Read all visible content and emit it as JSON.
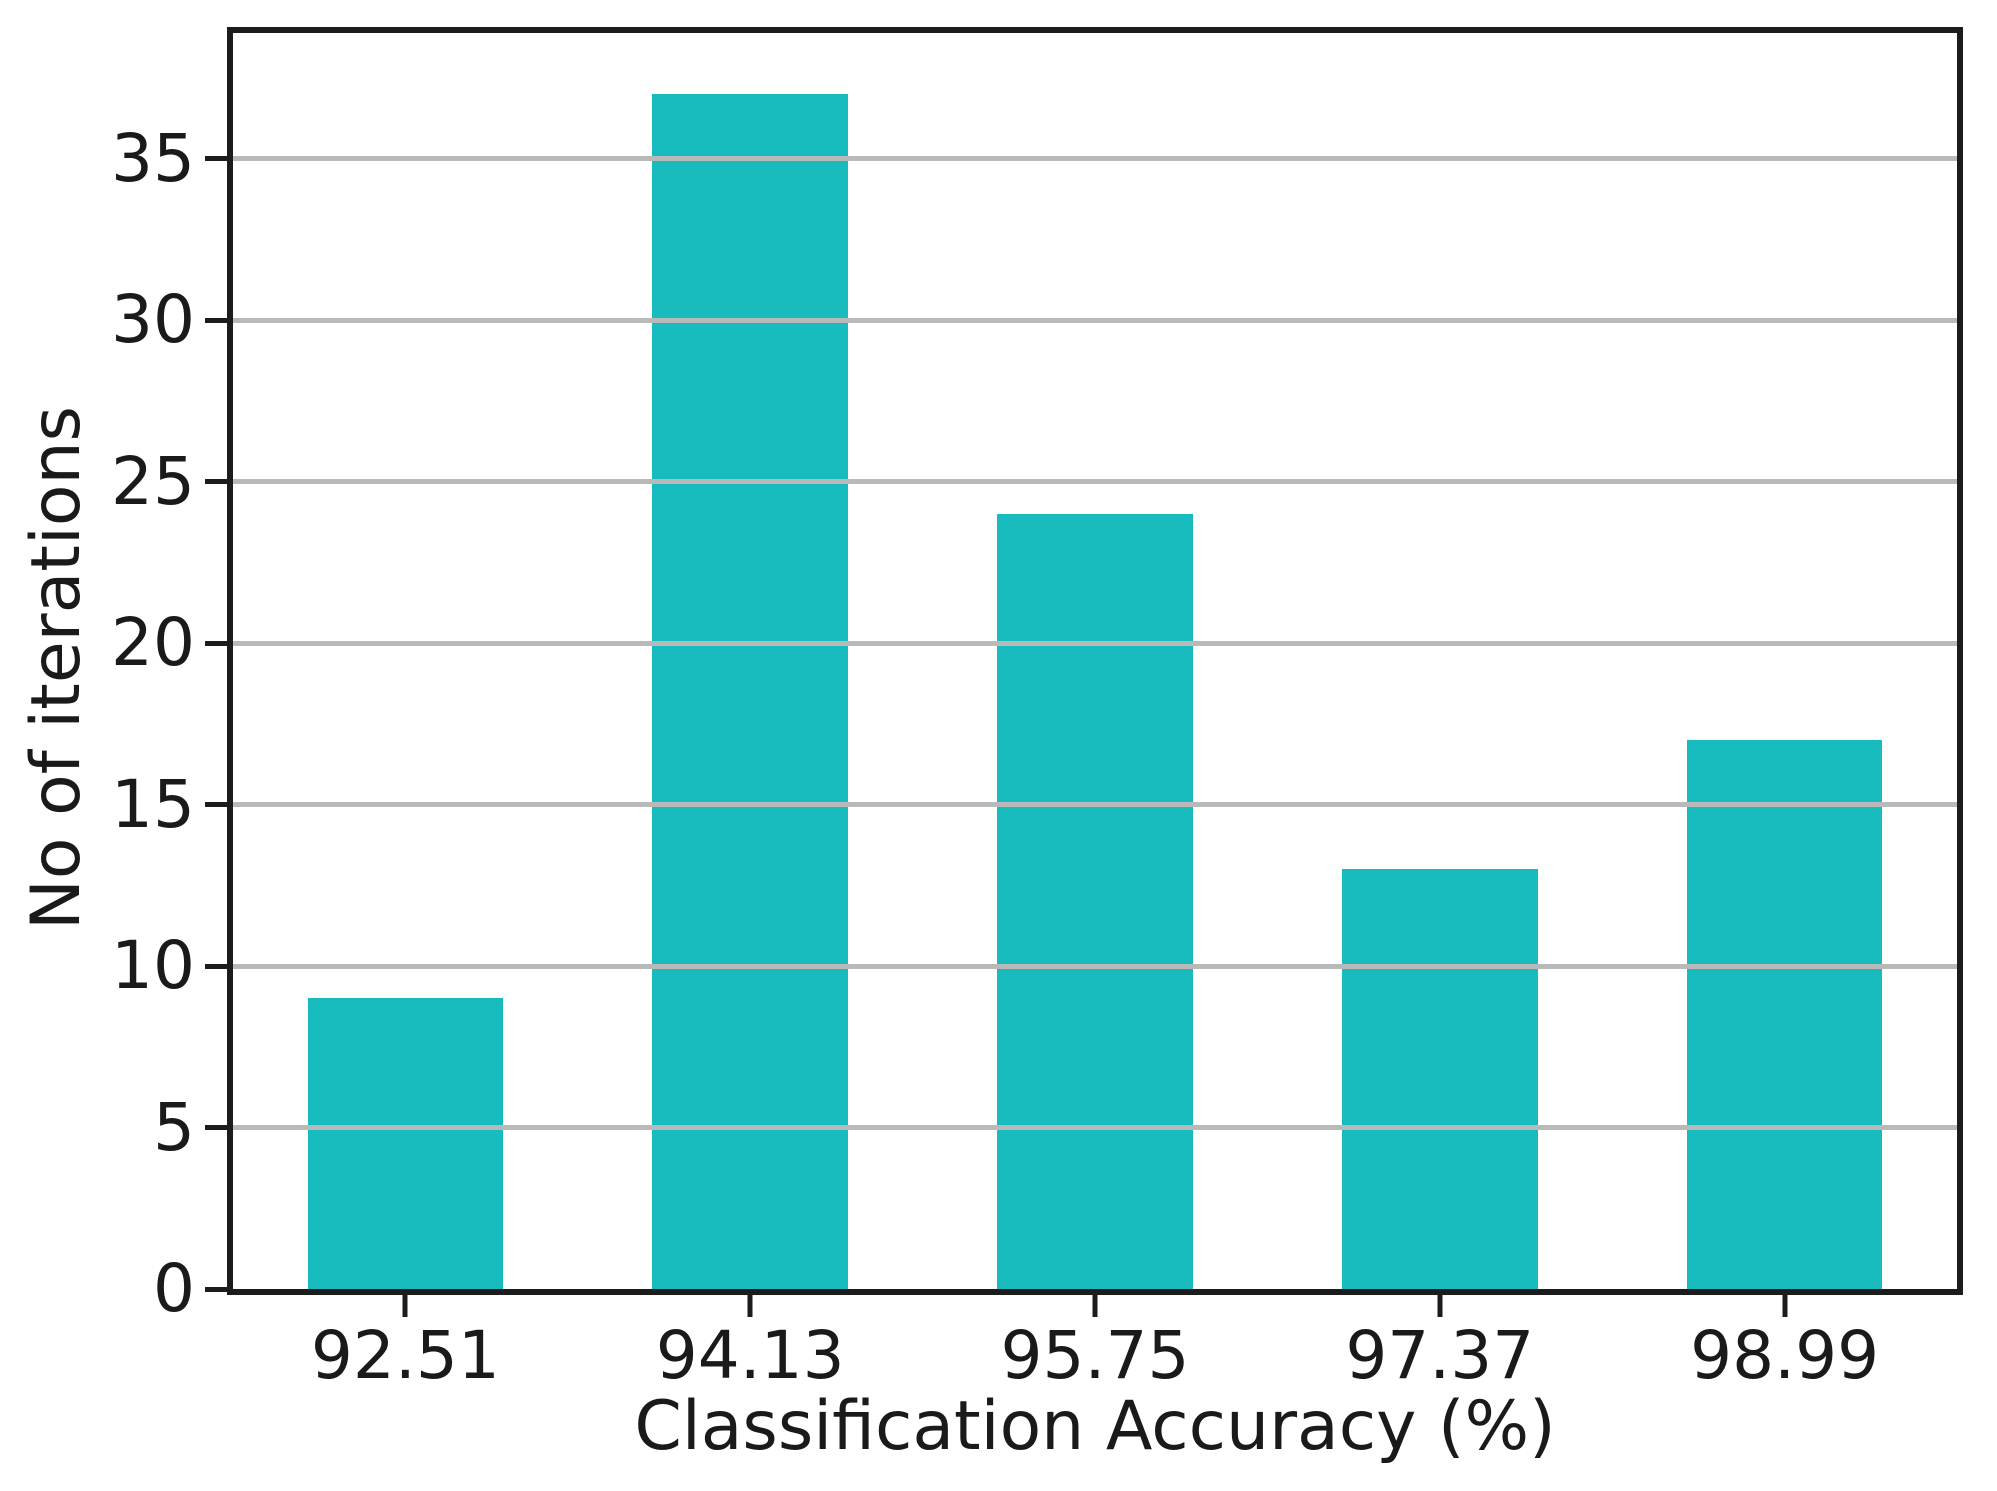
{
  "chart_data": {
    "type": "bar",
    "categories": [
      "92.51",
      "94.13",
      "95.75",
      "97.37",
      "98.99"
    ],
    "values": [
      9,
      37,
      24,
      13,
      17
    ],
    "title": "",
    "xlabel": "Classification Accuracy (%)",
    "ylabel": "No of iterations",
    "yticks": [
      0,
      5,
      10,
      15,
      20,
      25,
      30,
      35
    ],
    "ylim": [
      0,
      38.9
    ],
    "grid": true,
    "grid_on_top_of_bars": true,
    "legend": "none",
    "bar_color": "#19bcbe",
    "gridline_color": "#b9b9b9",
    "axis_color": "#1c1c1c",
    "text_color": "#1a1a1a",
    "bar_width_fraction_of_slot": 0.567
  }
}
